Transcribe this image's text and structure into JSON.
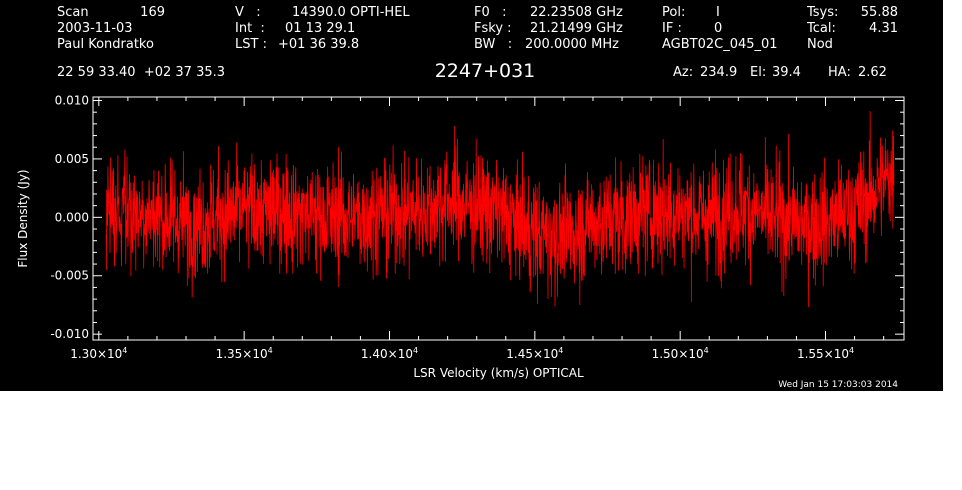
{
  "header": {
    "col1": {
      "scan_label": "Scan",
      "scan_value": "169",
      "date": "2003-11-03",
      "observer": "Paul Kondratko"
    },
    "col2": {
      "v_label": "V   :",
      "v_value": "14390.0 OPTI-HEL",
      "int_label": "Int  :",
      "int_value": "01 13 29.1",
      "lst_label": "LST :",
      "lst_value": "+01 36 39.8"
    },
    "col3": {
      "f0_label": "F0   :",
      "f0_value": "22.23508 GHz",
      "fsky_label": "Fsky :",
      "fsky_value": "21.21499 GHz",
      "bw_label": "BW   :",
      "bw_value": "200.0000 MHz"
    },
    "col4": {
      "pol_label": "Pol:",
      "pol_value": "I",
      "if_label": "IF :",
      "if_value": "0",
      "project": "AGBT02C_045_01"
    },
    "col5": {
      "tsys_label": "Tsys:",
      "tsys_value": "55.88",
      "tcal_label": "Tcal:",
      "tcal_value": "4.31",
      "mode": "Nod"
    },
    "coords": "22 59 33.40  +02 37 35.3",
    "source": "2247+031",
    "az_label": "Az:",
    "az_value": "234.9",
    "el_label": "El:",
    "el_value": "39.4",
    "ha_label": "HA:",
    "ha_value": "2.62"
  },
  "timestamp": "Wed Jan 15 17:03:03 2014",
  "colors": {
    "background": "#000000",
    "axes": "#ffffff",
    "trace": "#ff0000",
    "page": "#ffffff"
  },
  "chart_data": {
    "type": "line",
    "title": "2247+031",
    "xlabel": "LSR Velocity (km/s) OPTICAL",
    "ylabel": "Flux Density (Jy)",
    "xlim": [
      12980,
      15770
    ],
    "ylim": [
      -0.0105,
      0.0103
    ],
    "x_ticks": [
      {
        "value": 13000,
        "mantissa": "1.30",
        "exp": "4"
      },
      {
        "value": 13500,
        "mantissa": "1.35",
        "exp": "4"
      },
      {
        "value": 14000,
        "mantissa": "1.40",
        "exp": "4"
      },
      {
        "value": 14500,
        "mantissa": "1.45",
        "exp": "4"
      },
      {
        "value": 15000,
        "mantissa": "1.50",
        "exp": "4"
      },
      {
        "value": 15500,
        "mantissa": "1.55",
        "exp": "4"
      }
    ],
    "y_ticks": [
      {
        "value": 0.01,
        "label": "0.010"
      },
      {
        "value": 0.005,
        "label": "0.005"
      },
      {
        "value": 0.0,
        "label": "0.000"
      },
      {
        "value": -0.005,
        "label": "-0.005"
      },
      {
        "value": -0.01,
        "label": "-0.010"
      }
    ],
    "series": [
      {
        "x_start": 13025,
        "x_end": 15735,
        "noise_rms": 0.0028,
        "baseline": [
          [
            13025,
            0.0005
          ],
          [
            13150,
            0.0005
          ],
          [
            13300,
            -0.0005
          ],
          [
            13400,
            0.0
          ],
          [
            13500,
            0.0005
          ],
          [
            13600,
            0.0005
          ],
          [
            13700,
            0.0005
          ],
          [
            13800,
            0.0
          ],
          [
            13900,
            0.0
          ],
          [
            14000,
            0.0005
          ],
          [
            14100,
            0.0005
          ],
          [
            14200,
            0.0015
          ],
          [
            14300,
            0.001
          ],
          [
            14400,
            0.0
          ],
          [
            14500,
            -0.0015
          ],
          [
            14600,
            -0.0015
          ],
          [
            14700,
            -0.0005
          ],
          [
            14800,
            0.0
          ],
          [
            14900,
            0.0005
          ],
          [
            15000,
            0.0005
          ],
          [
            15100,
            0.0
          ],
          [
            15200,
            0.001
          ],
          [
            15300,
            0.0
          ],
          [
            15400,
            -0.0005
          ],
          [
            15500,
            -0.0005
          ],
          [
            15600,
            0.0005
          ],
          [
            15700,
            0.003
          ],
          [
            15735,
            0.004
          ]
        ]
      }
    ]
  }
}
